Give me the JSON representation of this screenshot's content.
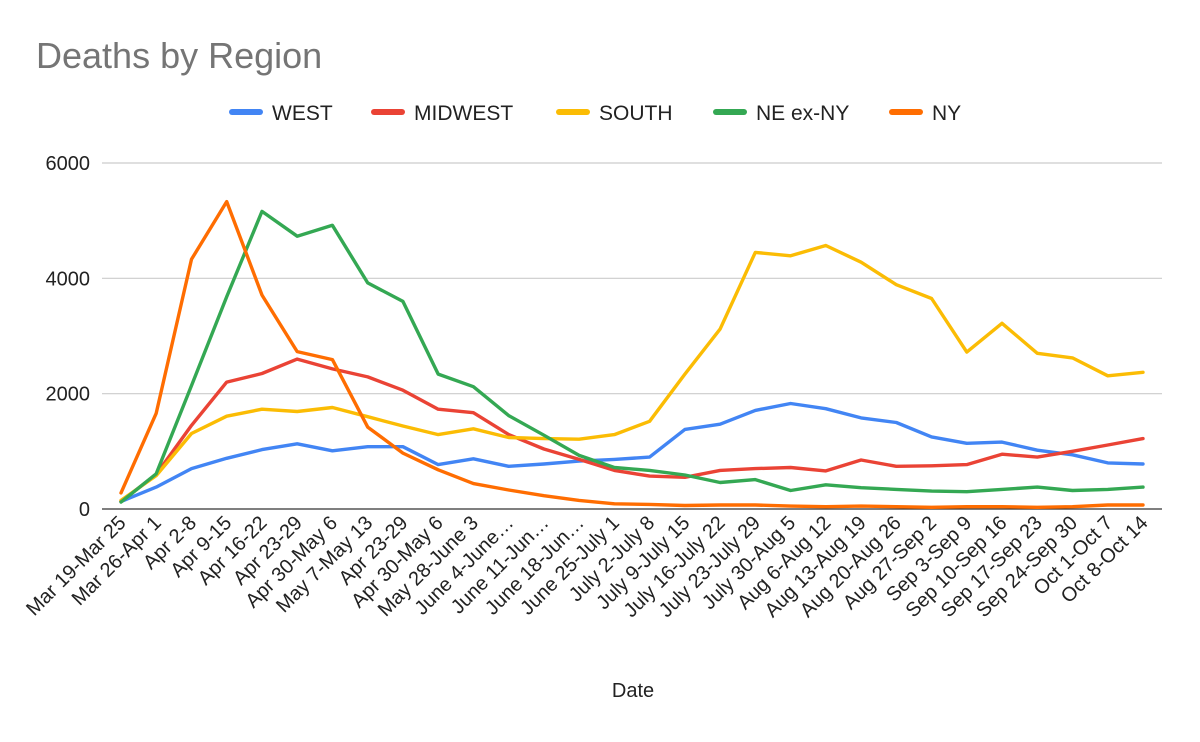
{
  "chart_data": {
    "type": "line",
    "title": "Deaths by Region",
    "xlabel": "Date",
    "ylabel": "",
    "ylim": [
      0,
      6000
    ],
    "yticks": [
      0,
      2000,
      4000,
      6000
    ],
    "grid": true,
    "legend_position": "top",
    "categories": [
      "Mar 19-Mar 25",
      "Mar 26-Apr 1",
      "Apr 2-8",
      "Apr 9-15",
      "Apr 16-22",
      "Apr 23-29",
      "Apr 30-May 6",
      "May 7-May 13",
      "Apr 23-29",
      "Apr 30-May 6",
      "May 28-June 3",
      "June 4-June…",
      "June 11-Jun…",
      "June 18-Jun…",
      "June 25-July 1",
      "July 2-July 8",
      "July 9-July 15",
      "July 16-July 22",
      "July 23-July 29",
      "July 30-Aug 5",
      "Aug 6-Aug 12",
      "Aug 13-Aug 19",
      "Aug 20-Aug 26",
      "Aug 27-Sep 2",
      "Sep 3-Sep 9",
      "Sep 10-Sep 16",
      "Sep 17-Sep 23",
      "Sep 24-Sep 30",
      "Oct 1-Oct 7",
      "Oct 8-Oct 14"
    ],
    "series": [
      {
        "name": "WEST",
        "color": "#4285f4",
        "values": [
          130,
          380,
          700,
          880,
          1030,
          1130,
          1010,
          1080,
          1080,
          770,
          870,
          740,
          780,
          830,
          860,
          900,
          1380,
          1470,
          1710,
          1830,
          1740,
          1580,
          1500,
          1250,
          1140,
          1160,
          1020,
          940,
          800,
          780
        ]
      },
      {
        "name": "MIDWEST",
        "color": "#ea4335",
        "values": [
          130,
          600,
          1450,
          2200,
          2350,
          2600,
          2430,
          2290,
          2060,
          1730,
          1670,
          1290,
          1040,
          860,
          670,
          570,
          550,
          670,
          700,
          720,
          660,
          850,
          740,
          750,
          770,
          950,
          900,
          1000,
          1110,
          1220
        ]
      },
      {
        "name": "SOUTH",
        "color": "#fbbc04",
        "values": [
          150,
          580,
          1310,
          1610,
          1730,
          1690,
          1760,
          1600,
          1440,
          1290,
          1390,
          1240,
          1220,
          1210,
          1290,
          1520,
          2340,
          3120,
          4450,
          4390,
          4570,
          4280,
          3890,
          3650,
          2720,
          3220,
          2700,
          2620,
          2310,
          2370
        ]
      },
      {
        "name": "NE ex-NY",
        "color": "#34a853",
        "values": [
          120,
          610,
          2140,
          3680,
          5160,
          4730,
          4920,
          3920,
          3600,
          2340,
          2120,
          1620,
          1280,
          930,
          720,
          670,
          590,
          460,
          510,
          320,
          420,
          370,
          340,
          310,
          300,
          340,
          380,
          320,
          340,
          380
        ]
      },
      {
        "name": "NY",
        "color": "#ff6d01",
        "values": [
          280,
          1660,
          4330,
          5330,
          3710,
          2730,
          2590,
          1420,
          970,
          680,
          440,
          330,
          230,
          150,
          90,
          80,
          60,
          70,
          70,
          50,
          40,
          50,
          40,
          30,
          40,
          40,
          30,
          40,
          70,
          70
        ]
      }
    ]
  }
}
